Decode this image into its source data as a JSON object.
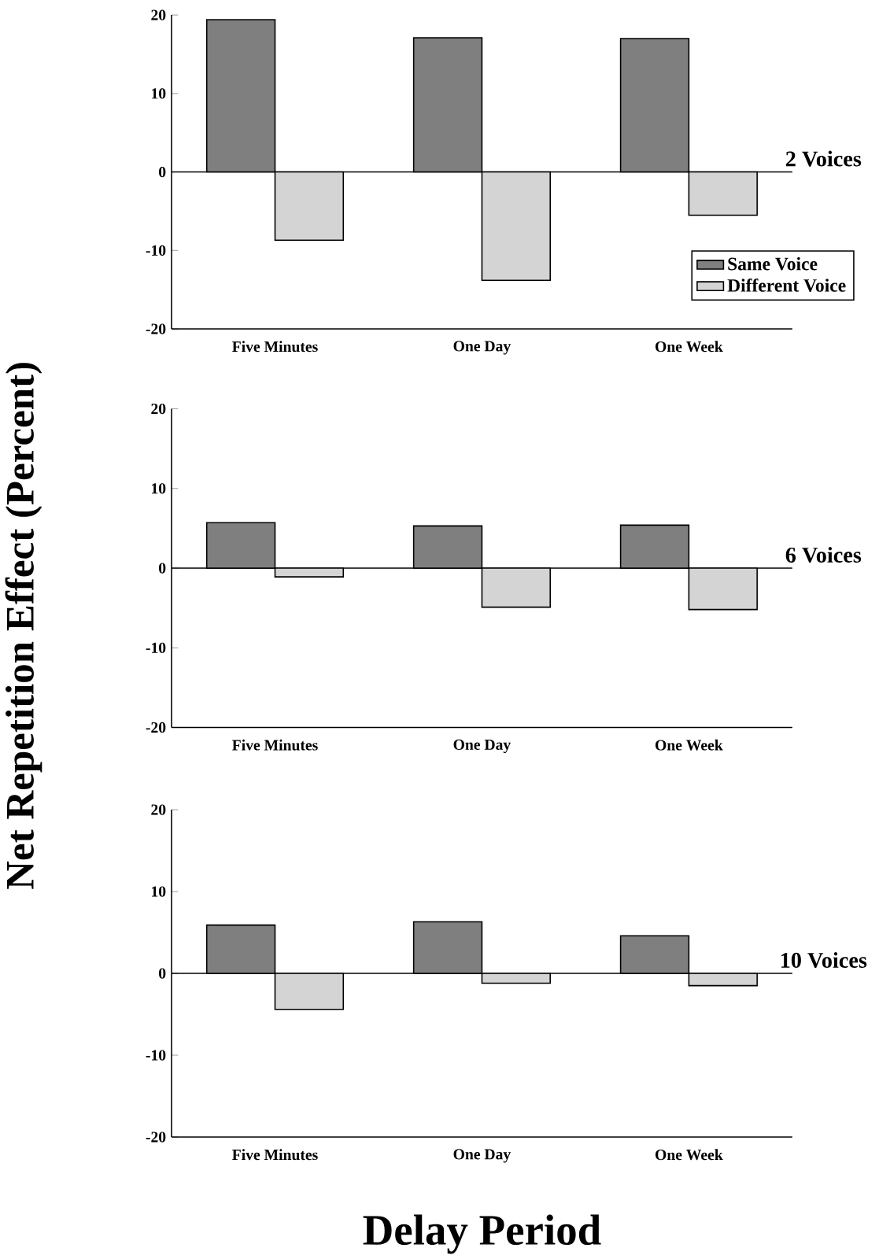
{
  "chart_data": [
    {
      "type": "bar",
      "categories": [
        "Five Minutes",
        "One Day",
        "One Week"
      ],
      "series": [
        {
          "name": "Same Voice",
          "color": "#7f7f7f",
          "values": [
            19.4,
            17.1,
            17.0
          ]
        },
        {
          "name": "Different Voice",
          "color": "#d4d4d4",
          "values": [
            -8.7,
            -13.8,
            -5.5
          ]
        }
      ],
      "ylim": [
        -20,
        20
      ],
      "yticks": [
        -20,
        -10,
        0,
        10,
        20
      ],
      "ref_lines": [
        {
          "axis": "y",
          "value": 0,
          "label": "2 Voices"
        }
      ],
      "legend": "right"
    },
    {
      "type": "bar",
      "categories": [
        "Five Minutes",
        "One Day",
        "One Week"
      ],
      "series": [
        {
          "color": "#7f7f7f",
          "values": [
            5.7,
            5.3,
            5.4
          ]
        },
        {
          "color": "#d4d4d4",
          "values": [
            -1.1,
            -4.9,
            -5.2
          ]
        }
      ],
      "ylim": [
        -20,
        20
      ],
      "yticks": [
        -20,
        -10,
        0,
        10,
        20
      ],
      "ref_lines": [
        {
          "axis": "y",
          "value": 0,
          "label": "6 Voices"
        }
      ],
      "ylabel": "Net Repetition Effect (Percent)"
    },
    {
      "type": "bar",
      "categories": [
        "Five Minutes",
        "One Day",
        "One Week"
      ],
      "series": [
        {
          "color": "#7f7f7f",
          "values": [
            5.9,
            6.3,
            4.6
          ]
        },
        {
          "color": "#d4d4d4",
          "values": [
            -4.4,
            -1.2,
            -1.5
          ]
        }
      ],
      "ylim": [
        -20,
        20
      ],
      "yticks": [
        -20,
        -10,
        0,
        10,
        20
      ],
      "ref_lines": [
        {
          "axis": "y",
          "value": 0,
          "label": "10 Voices"
        }
      ],
      "xlabel": "Delay Period"
    }
  ]
}
